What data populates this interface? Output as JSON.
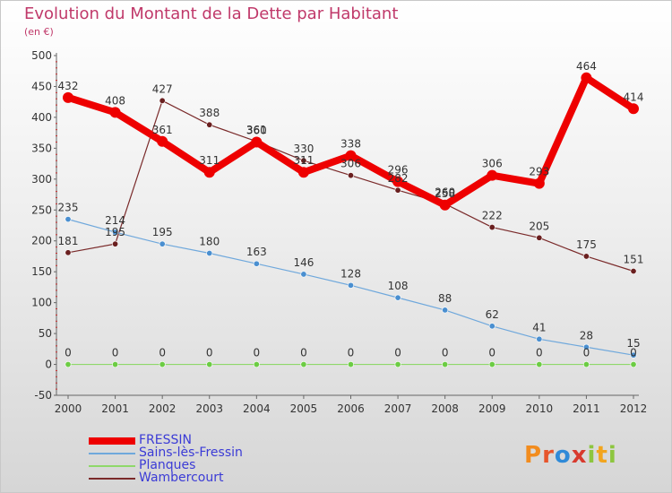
{
  "title": "Evolution du Montant de la Dette par Habitant",
  "subtitle": "(en €)",
  "logo": {
    "text": "Proxiti",
    "letters": [
      "P",
      "r",
      "o",
      "x",
      "i",
      "t",
      "i"
    ],
    "colors": [
      "#f28c1e",
      "#e7552c",
      "#2f8ad8",
      "#d83a2e",
      "#8dc63f",
      "#f2a51e",
      "#8dc63f"
    ]
  },
  "chart_data": {
    "type": "line",
    "title": "Evolution du Montant de la Dette par Habitant",
    "ylabel": "(en €)",
    "xlabel": "",
    "x": [
      "2000",
      "2001",
      "2002",
      "2003",
      "2004",
      "2005",
      "2006",
      "2007",
      "2008",
      "2009",
      "2010",
      "2011",
      "2012"
    ],
    "ylim": [
      -50,
      500
    ],
    "yticks": [
      -50,
      0,
      50,
      100,
      150,
      200,
      250,
      300,
      350,
      400,
      450,
      500
    ],
    "grid": false,
    "legend": "bottom-left",
    "series": [
      {
        "name": "FRESSIN",
        "color": "#ee0000",
        "values": [
          432,
          408,
          361,
          311,
          360,
          311,
          338,
          296,
          258,
          306,
          293,
          464,
          414
        ]
      },
      {
        "name": "Sains-lès-Fressin",
        "color": "#6fa8dc",
        "values": [
          235,
          214,
          195,
          180,
          163,
          146,
          128,
          108,
          88,
          62,
          41,
          28,
          15
        ]
      },
      {
        "name": "Planques",
        "color": "#8fd86a",
        "values": [
          0,
          0,
          0,
          0,
          0,
          0,
          0,
          0,
          0,
          0,
          0,
          0,
          0
        ]
      },
      {
        "name": "Wambercourt",
        "color": "#7a2a2a",
        "values": [
          181,
          195,
          427,
          388,
          361,
          330,
          306,
          282,
          260,
          222,
          205,
          175,
          151
        ]
      }
    ]
  }
}
